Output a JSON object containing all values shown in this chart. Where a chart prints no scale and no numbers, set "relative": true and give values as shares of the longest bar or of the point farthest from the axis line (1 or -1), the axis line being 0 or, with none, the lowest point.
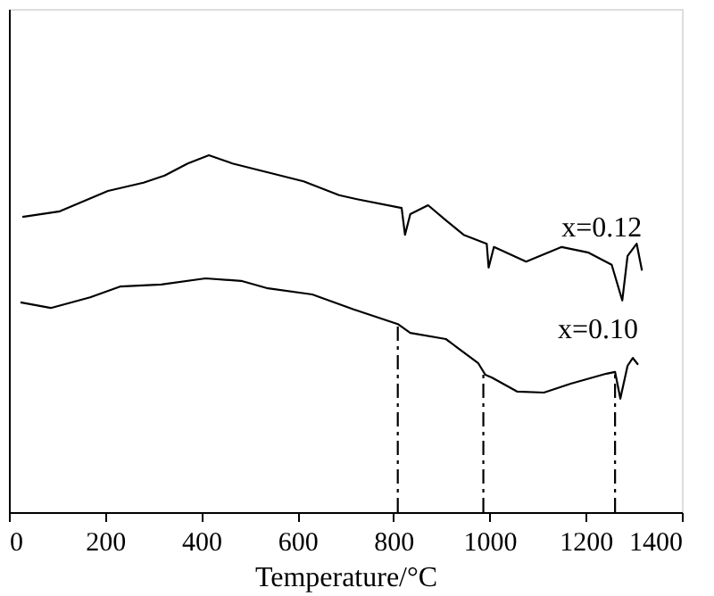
{
  "chart_data": {
    "type": "line",
    "xlabel": "Temperature/°C",
    "relative": true,
    "xlim": [
      0,
      1400
    ],
    "xticks": [
      0,
      200,
      400,
      600,
      800,
      1000,
      1200,
      1400
    ],
    "grid": false,
    "marker": "none",
    "series": [
      {
        "name": "x=0.12",
        "color": "#000000",
        "x": [
          28,
          106,
          206,
          280,
          324,
          372,
          416,
          465,
          539,
          613,
          687,
          724,
          817,
          824,
          835,
          872,
          909,
          946,
          994,
          998,
          1009,
          1076,
          1150,
          1206,
          1254,
          1276,
          1287,
          1306,
          1317
        ],
        "values": [
          0.827,
          0.843,
          0.9,
          0.923,
          0.943,
          0.977,
          1.0,
          0.977,
          0.952,
          0.927,
          0.888,
          0.877,
          0.852,
          0.777,
          0.835,
          0.86,
          0.818,
          0.777,
          0.752,
          0.685,
          0.743,
          0.702,
          0.743,
          0.727,
          0.693,
          0.593,
          0.718,
          0.752,
          0.677
        ]
      },
      {
        "name": "x=0.10",
        "color": "#000000",
        "x": [
          24,
          87,
          169,
          231,
          317,
          409,
          483,
          539,
          631,
          717,
          724,
          809,
          835,
          909,
          976,
          991,
          1005,
          1057,
          1113,
          1169,
          1243,
          1261,
          1272,
          1287,
          1298,
          1309
        ],
        "values": [
          0.588,
          0.572,
          0.602,
          0.632,
          0.638,
          0.655,
          0.648,
          0.627,
          0.61,
          0.568,
          0.565,
          0.527,
          0.502,
          0.485,
          0.418,
          0.385,
          0.377,
          0.338,
          0.335,
          0.36,
          0.388,
          0.393,
          0.318,
          0.41,
          0.432,
          0.413
        ]
      }
    ],
    "ref_lines": [
      {
        "axis": "x",
        "value": 809,
        "color": "#000000",
        "line_style": "dashed"
      },
      {
        "axis": "x",
        "value": 987,
        "color": "#000000",
        "line_style": "dashed"
      },
      {
        "axis": "x",
        "value": 1261,
        "color": "#000000",
        "line_style": "dashed"
      }
    ]
  }
}
